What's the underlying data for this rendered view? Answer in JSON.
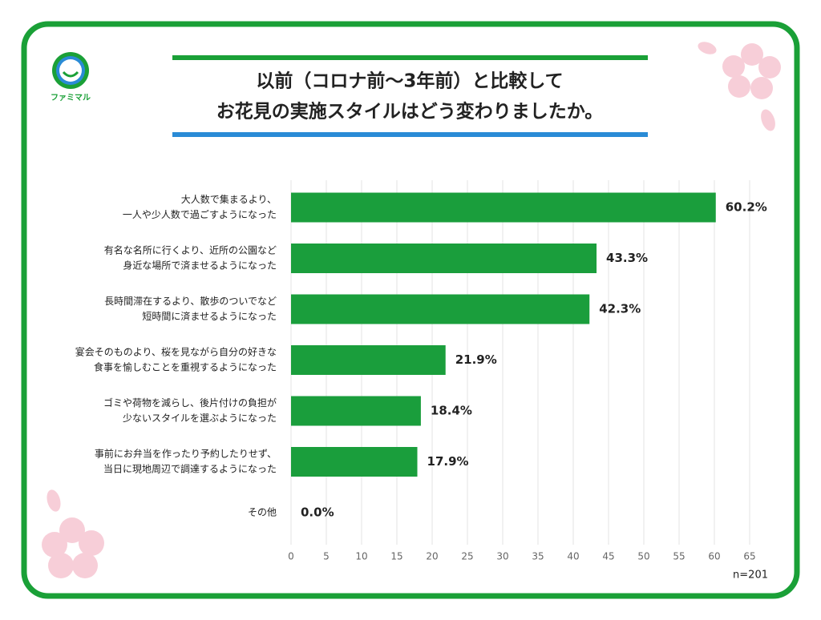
{
  "chart_data": {
    "type": "bar",
    "orientation": "horizontal",
    "logo_text": "ファミマル",
    "title": [
      "以前（コロナ前〜3年前）と比較して",
      "お花見の実施スタイルはどう変わりましたか。"
    ],
    "categories": [
      [
        "大人数で集まるより、",
        "一人や少人数で過ごすようになった"
      ],
      [
        "有名な名所に行くより、近所の公園など",
        "身近な場所で済ませるようになった"
      ],
      [
        "長時間滞在するより、散歩のついでなど",
        "短時間に済ませるようになった"
      ],
      [
        "宴会そのものより、桜を見ながら自分の好きな",
        "食事を愉しむことを重視するようになった"
      ],
      [
        "ゴミや荷物を減らし、後片付けの負担が",
        "少ないスタイルを選ぶようになった"
      ],
      [
        "事前にお弁当を作ったり予約したりせず、",
        "当日に現地周辺で調達するようになった"
      ],
      [
        "その他"
      ]
    ],
    "values": [
      60.2,
      43.3,
      42.3,
      21.9,
      18.4,
      17.9,
      0.0
    ],
    "value_labels": [
      "60.2%",
      "43.3%",
      "42.3%",
      "21.9%",
      "18.4%",
      "17.9%",
      "0.0%"
    ],
    "color": "#1a9e3c",
    "xlim": [
      0,
      65
    ],
    "xticks": [
      0,
      5,
      10,
      15,
      20,
      25,
      30,
      35,
      40,
      45,
      50,
      55,
      60,
      65
    ],
    "grid": true,
    "note": "n=201"
  }
}
